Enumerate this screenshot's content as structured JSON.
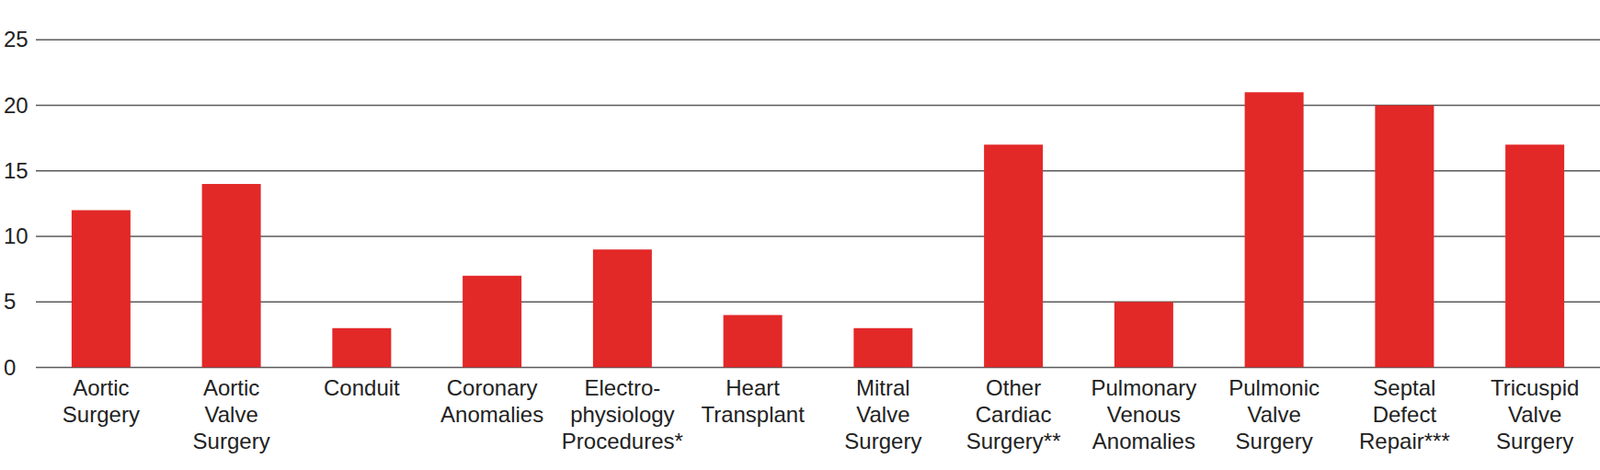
{
  "chart_data": {
    "type": "bar",
    "categories": [
      "Aortic\nSurgery",
      "Aortic\nValve\nSurgery",
      "Conduit",
      "Coronary\nAnomalies",
      "Electro-\nphysiology\nProcedures*",
      "Heart\nTransplant",
      "Mitral\nValve\nSurgery",
      "Other\nCardiac\nSurgery**",
      "Pulmonary\nVenous\nAnomalies",
      "Pulmonic\nValve\nSurgery",
      "Septal\nDefect\nRepair***",
      "Tricuspid\nValve\nSurgery"
    ],
    "values": [
      12,
      14,
      3,
      7,
      9,
      4,
      3,
      17,
      5,
      21,
      20,
      17
    ],
    "color": "#e32828",
    "ylim": [
      0,
      25
    ],
    "yticks": [
      0,
      5,
      10,
      15,
      20,
      25
    ],
    "grid": true
  }
}
